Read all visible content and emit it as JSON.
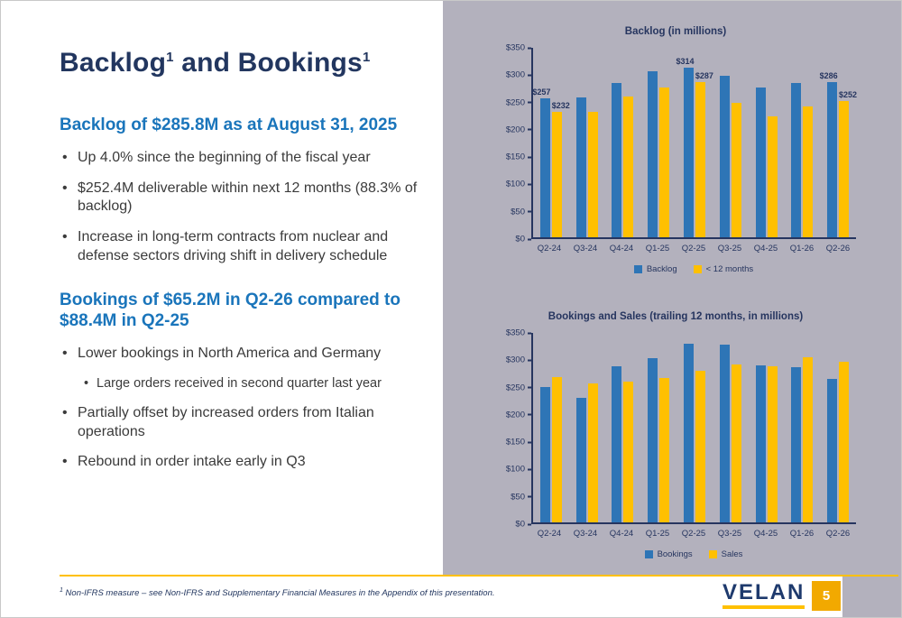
{
  "slide": {
    "title": {
      "part1": "Backlog",
      "sup1": "1",
      "part2": " and Bookings",
      "sup2": "1"
    },
    "footnote": {
      "sup": "1",
      "text": " Non-IFRS measure – see Non-IFRS and Supplementary Financial Measures in the Appendix of this presentation."
    },
    "logo_text": "VELAN",
    "page_number": "5"
  },
  "colors": {
    "accent_blue": "#2e75b6",
    "accent_gold": "#ffc000",
    "heading_blue": "#1a75bb",
    "navy": "#26355f",
    "panel_gray": "#b3b1bd"
  },
  "left": {
    "sections": [
      {
        "heading": "Backlog of $285.8M as at August 31, 2025",
        "bullets": [
          {
            "level": 1,
            "text": "Up 4.0% since the beginning of the fiscal year"
          },
          {
            "level": 1,
            "text": "$252.4M deliverable within next 12 months (88.3% of backlog)"
          },
          {
            "level": 1,
            "text": "Increase in long-term contracts from nuclear and defense sectors driving shift in delivery schedule"
          }
        ]
      },
      {
        "heading": "Bookings of $65.2M in Q2-26 compared to $88.4M in Q2-25",
        "bullets": [
          {
            "level": 1,
            "text": "Lower bookings in North America and Germany"
          },
          {
            "level": 2,
            "text": "Large orders received in second quarter last year"
          },
          {
            "level": 1,
            "text": "Partially offset by increased orders from Italian operations"
          },
          {
            "level": 1,
            "text": "Rebound in order intake early in Q3"
          }
        ]
      }
    ]
  },
  "chart_data": [
    {
      "type": "bar",
      "title": "Backlog (in millions)",
      "categories": [
        "Q2-24",
        "Q3-24",
        "Q4-24",
        "Q1-25",
        "Q2-25",
        "Q3-25",
        "Q4-25",
        "Q1-26",
        "Q2-26"
      ],
      "ymax": 350,
      "y_ticks": [
        "$350",
        "$300",
        "$250",
        "$200",
        "$150",
        "$100",
        "$50",
        "$0"
      ],
      "legend_position": "bottom",
      "grid": false,
      "series": [
        {
          "name": "Backlog",
          "color": "#2e75b6",
          "values": [
            257,
            258,
            285,
            306,
            314,
            299,
            276,
            285,
            286
          ],
          "labels": [
            "$257",
            null,
            null,
            null,
            "$314",
            null,
            null,
            null,
            "$286"
          ]
        },
        {
          "name": "< 12 months",
          "color": "#ffc000",
          "values": [
            232,
            232,
            260,
            276,
            287,
            249,
            224,
            241,
            252
          ],
          "labels": [
            "$232",
            null,
            null,
            null,
            "$287",
            null,
            null,
            null,
            "$252"
          ]
        }
      ]
    },
    {
      "type": "bar",
      "title": "Bookings and Sales (trailing 12 months, in millions)",
      "categories": [
        "Q2-24",
        "Q3-24",
        "Q4-24",
        "Q1-25",
        "Q2-25",
        "Q3-25",
        "Q4-25",
        "Q1-26",
        "Q2-26"
      ],
      "ymax": 350,
      "y_ticks": [
        "$350",
        "$300",
        "$250",
        "$200",
        "$150",
        "$100",
        "$50",
        "$0"
      ],
      "legend_position": "bottom",
      "grid": false,
      "series": [
        {
          "name": "Bookings",
          "color": "#2e75b6",
          "values": [
            250,
            230,
            288,
            303,
            330,
            328,
            290,
            287,
            265
          ]
        },
        {
          "name": "Sales",
          "color": "#ffc000",
          "values": [
            268,
            257,
            260,
            267,
            280,
            292,
            288,
            305,
            297
          ]
        }
      ]
    }
  ]
}
